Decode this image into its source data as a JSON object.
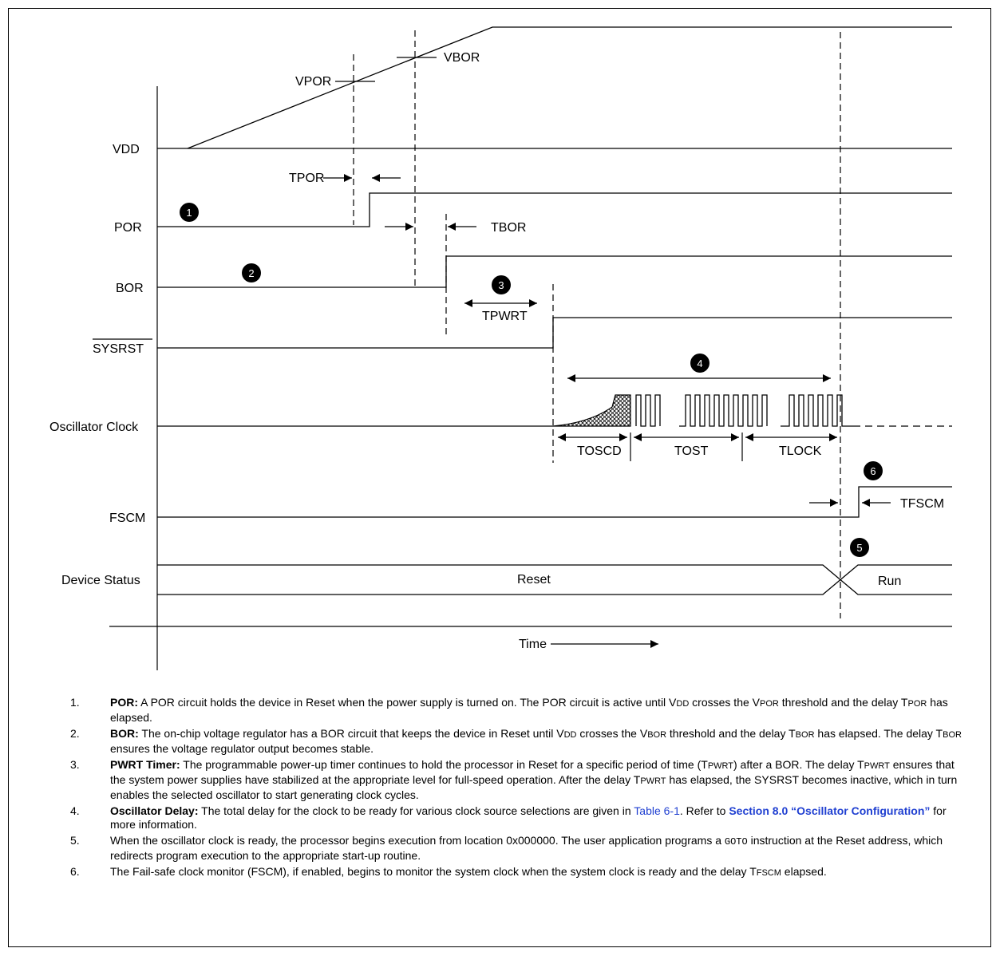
{
  "signals": {
    "vdd": "VDD",
    "por": "POR",
    "bor": "BOR",
    "sysrst": "SYSRST",
    "osc": "Oscillator Clock",
    "fscm": "FSCM",
    "status": "Device Status"
  },
  "labels": {
    "vpor": "VPOR",
    "vbor": "VBOR",
    "tpor": "TPOR",
    "tbor": "TBOR",
    "tpwrt": "TPWRT",
    "toscd": "TOSCD",
    "tost": "TOST",
    "tlock": "TLOCK",
    "tfscm": "TFSCM",
    "reset": "Reset",
    "run": "Run",
    "time": "Time"
  },
  "markers": [
    "1",
    "2",
    "3",
    "4",
    "5",
    "6"
  ],
  "notes": [
    {
      "num": "1.",
      "title": "POR:",
      "t1": " A POR circuit holds the device in Reset when the power supply is turned on. The POR circuit is active until V",
      "s1": "DD",
      "t2": " crosses the V",
      "s2": "POR",
      "t3": " threshold and the delay T",
      "s3": "POR",
      "t4": " has elapsed."
    },
    {
      "num": "2.",
      "title": "BOR:",
      "t1": " The on-chip voltage regulator has a BOR circuit that keeps the device in Reset until V",
      "s1": "DD",
      "t2": " crosses the V",
      "s2": "BOR",
      "t3": " threshold and the delay T",
      "s3": "BOR",
      "t4": " has elapsed. The delay T",
      "s4": "BOR",
      "t5": " ensures the voltage regulator output becomes stable."
    },
    {
      "num": "3.",
      "title": "PWRT Timer:",
      "t1": " The programmable power-up timer continues to hold the processor in Reset for a specific period of time (T",
      "s1": "PWRT",
      "t2": ") after a BOR. The delay T",
      "s2": "PWRT",
      "t3": " ensures that the system power supplies have stabilized at the appropriate level for full-speed operation. After the delay T",
      "s3": "PWRT",
      "t4": " has elapsed, the SYSRST becomes inactive, which in turn enables the selected oscillator to start generating clock cycles."
    },
    {
      "num": "4.",
      "title": "Oscillator Delay:",
      "t1": " The total delay for the clock to be ready for various clock source selections are given in ",
      "link1": "Table 6-1",
      "t2": ". Refer to ",
      "link2": "Section 8.0 “Oscillator Configuration”",
      "t3": " for more information."
    },
    {
      "num": "5.",
      "t1": "When the oscillator clock is ready, the processor begins execution from location 0x000000. The user application programs a ",
      "code": "GOTO",
      "t2": " instruction at the Reset address, which redirects program execution to the appropriate start-up routine."
    },
    {
      "num": "6.",
      "t1": "The Fail-safe clock monitor (FSCM), if enabled, begins to monitor the system clock when the system clock is ready and the delay T",
      "s1": "FSCM",
      "t2": " elapsed."
    }
  ]
}
